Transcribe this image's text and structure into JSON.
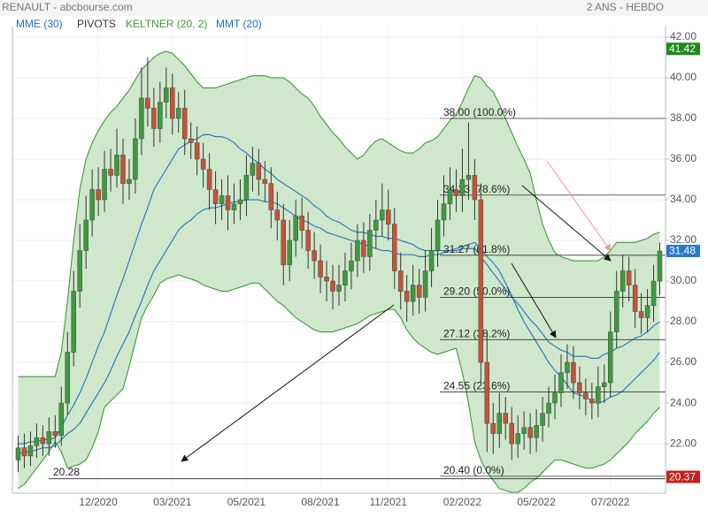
{
  "chart_data": {
    "type": "candlestick",
    "title": "RENAULT - abcbourse.com",
    "period": "2 ANS - HEBDO",
    "categories": [
      null,
      null,
      null,
      null,
      null,
      null,
      null,
      null,
      null,
      null,
      null,
      null,
      null,
      "12/2020",
      null,
      null,
      null,
      null,
      null,
      null,
      null,
      null,
      null,
      null,
      null,
      "03/2021",
      null,
      null,
      null,
      null,
      null,
      null,
      null,
      null,
      null,
      null,
      null,
      "05/2021",
      null,
      null,
      null,
      null,
      null,
      null,
      null,
      null,
      null,
      null,
      null,
      "08/2021",
      null,
      null,
      null,
      null,
      null,
      null,
      null,
      null,
      null,
      null,
      "11/2021",
      null,
      null,
      null,
      null,
      null,
      null,
      null,
      null,
      null,
      null,
      null,
      "02/2022",
      null,
      null,
      null,
      null,
      null,
      null,
      null,
      null,
      null,
      null,
      null,
      "05/2022",
      null,
      null,
      null,
      null,
      null,
      null,
      null,
      null,
      null,
      null,
      null,
      "07/2022",
      null,
      null,
      null,
      null,
      null,
      null,
      null,
      null
    ],
    "open": [
      21.2,
      21.8,
      21.4,
      21.9,
      22.3,
      22.0,
      22.6,
      22.4,
      24.0,
      26.5,
      29.5,
      31.5,
      33.0,
      34.5,
      34.0,
      35.5,
      35.2,
      36.2,
      34.8,
      35.0,
      37.0,
      39.0,
      38.5,
      37.5,
      38.8,
      39.5,
      38.0,
      38.5,
      37.0,
      36.8,
      36.0,
      35.5,
      34.5,
      33.8,
      34.2,
      33.5,
      33.8,
      34.0,
      35.2,
      35.8,
      35.0,
      34.8,
      33.5,
      33.0,
      30.8,
      32.0,
      33.2,
      32.5,
      31.5,
      31.0,
      30.2,
      30.0,
      29.5,
      29.8,
      30.5,
      31.0,
      32.0,
      31.2,
      32.5,
      33.0,
      33.5,
      32.8,
      30.5,
      29.5,
      29.0,
      29.8,
      29.2,
      30.5,
      31.5,
      33.0,
      33.8,
      34.5,
      34.2,
      35.0,
      35.2,
      34.0,
      26.0,
      23.0,
      22.5,
      23.5,
      23.0,
      22.0,
      22.5,
      22.8,
      22.3,
      22.9,
      23.5,
      24.0,
      24.5,
      25.5,
      26.0,
      25.0,
      24.5,
      24.2,
      24.0,
      24.8,
      25.0,
      27.5,
      29.5,
      30.5,
      29.8,
      28.5,
      28.2,
      28.8,
      30.0
    ],
    "high": [
      22.4,
      22.5,
      22.6,
      23.0,
      22.9,
      23.3,
      23.4,
      24.8,
      27.5,
      30.5,
      32.8,
      34.2,
      35.5,
      35.6,
      36.4,
      36.5,
      37.5,
      37.0,
      36.0,
      38.0,
      40.5,
      41.0,
      39.5,
      39.8,
      40.5,
      40.2,
      39.3,
      39.4,
      37.8,
      37.6,
      36.8,
      36.3,
      35.4,
      35.0,
      35.2,
      34.8,
      35.0,
      36.2,
      36.6,
      36.5,
      35.9,
      35.6,
      34.4,
      33.8,
      33.0,
      34.0,
      34.1,
      33.4,
      32.4,
      31.8,
      31.0,
      30.8,
      30.8,
      31.4,
      31.9,
      32.8,
      32.9,
      33.3,
      34.0,
      34.8,
      34.5,
      33.6,
      31.4,
      30.3,
      30.8,
      30.6,
      31.5,
      32.6,
      34.0,
      35.2,
      35.6,
      35.5,
      36.5,
      37.8,
      36.0,
      34.8,
      27.5,
      24.0,
      24.5,
      24.3,
      23.8,
      23.4,
      23.6,
      23.5,
      23.7,
      24.3,
      24.8,
      25.4,
      26.4,
      26.9,
      26.8,
      25.8,
      25.2,
      25.0,
      25.8,
      25.9,
      28.5,
      30.5,
      31.3,
      31.2,
      30.6,
      29.4,
      29.6,
      30.8,
      31.9
    ],
    "low": [
      20.6,
      20.8,
      20.9,
      21.3,
      21.4,
      21.4,
      21.8,
      21.9,
      23.4,
      25.8,
      28.7,
      30.6,
      32.2,
      33.2,
      33.4,
      34.4,
      34.6,
      33.8,
      34.0,
      34.3,
      36.2,
      37.6,
      36.6,
      36.8,
      38.0,
      37.2,
      37.3,
      36.2,
      36.0,
      35.2,
      34.6,
      33.5,
      32.8,
      33.0,
      32.5,
      32.8,
      33.0,
      33.2,
      34.4,
      34.2,
      33.9,
      32.6,
      32.0,
      29.8,
      30.0,
      31.2,
      31.6,
      30.6,
      30.1,
      29.4,
      29.0,
      28.6,
      28.8,
      29.0,
      29.6,
      30.2,
      30.4,
      30.5,
      31.6,
      32.2,
      32.0,
      29.6,
      28.6,
      28.0,
      28.3,
      28.4,
      28.5,
      29.7,
      30.7,
      32.2,
      33.0,
      33.4,
      33.4,
      34.0,
      33.0,
      25.0,
      21.6,
      21.5,
      21.8,
      22.2,
      21.2,
      21.3,
      21.7,
      21.5,
      21.6,
      22.1,
      22.8,
      23.2,
      23.8,
      24.7,
      24.2,
      23.7,
      23.4,
      23.2,
      23.3,
      24.0,
      24.3,
      26.7,
      28.7,
      29.0,
      27.7,
      27.4,
      27.5,
      28.0,
      29.3
    ],
    "close": [
      21.8,
      21.4,
      21.9,
      22.3,
      22.0,
      22.6,
      22.4,
      24.0,
      26.5,
      29.5,
      31.5,
      33.0,
      34.5,
      34.0,
      35.5,
      35.2,
      36.2,
      34.8,
      35.0,
      37.0,
      39.0,
      38.5,
      37.5,
      38.8,
      39.5,
      38.0,
      38.5,
      37.0,
      36.8,
      36.0,
      35.5,
      34.5,
      33.8,
      34.2,
      33.5,
      33.8,
      34.0,
      35.2,
      35.8,
      35.0,
      34.8,
      33.5,
      33.0,
      30.8,
      32.0,
      33.2,
      32.5,
      31.5,
      31.0,
      30.2,
      30.0,
      29.5,
      29.8,
      30.5,
      31.0,
      32.0,
      31.2,
      32.5,
      33.0,
      33.5,
      32.8,
      30.5,
      29.5,
      29.0,
      29.8,
      29.2,
      30.5,
      31.5,
      33.0,
      33.8,
      34.5,
      34.2,
      35.0,
      35.2,
      34.0,
      26.0,
      23.0,
      22.5,
      23.5,
      23.0,
      22.0,
      22.5,
      22.8,
      22.3,
      22.9,
      23.5,
      24.0,
      24.5,
      25.5,
      26.0,
      25.0,
      24.5,
      24.2,
      24.0,
      24.8,
      25.0,
      27.5,
      29.5,
      30.5,
      29.8,
      28.5,
      28.2,
      28.8,
      30.0,
      31.48
    ],
    "up_color": "#3f9a3f",
    "down_color": "#c4533a",
    "series": [
      {
        "name": "MME (30)",
        "color": "#1f6fc5",
        "values": [
          21.5,
          21.6,
          21.6,
          21.7,
          21.8,
          21.8,
          21.9,
          22.2,
          22.5,
          22.7,
          23.0,
          23.5,
          24.0,
          24.5,
          25.0,
          25.6,
          26.3,
          26.9,
          27.5,
          28.3,
          29.0,
          29.8,
          30.5,
          31.0,
          31.5,
          32.0,
          32.5,
          32.8,
          33.0,
          33.3,
          33.5,
          33.6,
          33.6,
          33.7,
          33.8,
          33.9,
          33.9,
          34.0,
          34.0,
          34.0,
          33.9,
          33.9,
          33.8,
          33.6,
          33.4,
          33.2,
          33.0,
          32.9,
          32.7,
          32.6,
          32.4,
          32.3,
          32.2,
          32.1,
          32.0,
          31.9,
          31.8,
          31.7,
          31.6,
          31.5,
          31.5,
          31.4,
          31.3,
          31.3,
          31.3,
          31.2,
          31.2,
          31.3,
          31.3,
          31.4,
          31.5,
          31.6,
          31.7,
          31.8,
          31.9,
          31.6,
          31.2,
          30.9,
          30.5,
          29.9,
          29.3,
          28.6,
          28.0,
          27.5,
          27.0,
          26.5,
          26.0,
          25.6,
          25.3,
          24.9,
          24.5,
          24.4,
          24.3,
          24.1,
          24.0,
          24.1,
          24.3,
          24.4,
          24.6,
          24.9,
          25.2,
          25.5,
          25.8,
          26.1,
          26.5
        ]
      },
      {
        "name": "KELTNER (20, 2)",
        "color": "#3a9a3a",
        "fill": "#cfe8cb",
        "upper": [
          25.3,
          25.3,
          25.3,
          25.3,
          25.3,
          25.3,
          25.3,
          26.5,
          29.0,
          32.0,
          34.5,
          36.0,
          36.8,
          37.4,
          37.9,
          38.3,
          38.6,
          39.0,
          39.4,
          39.9,
          40.4,
          40.7,
          41.0,
          41.2,
          41.3,
          41.2,
          40.9,
          40.6,
          40.2,
          39.8,
          39.5,
          39.5,
          39.5,
          39.6,
          39.7,
          39.8,
          39.9,
          40.0,
          40.1,
          40.1,
          40.1,
          40.0,
          40.0,
          40.0,
          39.8,
          39.5,
          39.2,
          39.0,
          38.6,
          38.1,
          37.7,
          37.3,
          37.0,
          36.6,
          36.3,
          36.0,
          36.2,
          36.6,
          36.9,
          37.0,
          36.8,
          36.6,
          36.4,
          36.3,
          36.3,
          36.5,
          36.8,
          36.9,
          37.1,
          37.5,
          37.9,
          38.2,
          38.8,
          39.5,
          40.1,
          40.0,
          39.6,
          39.3,
          38.7,
          38.0,
          37.3,
          36.6,
          36.0,
          35.3,
          34.0,
          32.8,
          32.0,
          31.4,
          31.2,
          31.1,
          31.0,
          31.0,
          31.0,
          31.0,
          31.0,
          31.2,
          31.5,
          31.9,
          31.9,
          31.9,
          31.9,
          32.0,
          32.1,
          32.3,
          32.4
        ],
        "lower": [
          19.8,
          20.0,
          20.4,
          20.8,
          21.2,
          21.6,
          22.1,
          21.6,
          20.8,
          20.9,
          21.0,
          21.2,
          21.8,
          22.6,
          23.8,
          24.1,
          24.4,
          24.7,
          25.8,
          27.0,
          28.2,
          28.8,
          29.3,
          29.9,
          30.1,
          30.2,
          30.3,
          30.2,
          30.1,
          30.0,
          29.8,
          29.7,
          29.6,
          29.5,
          29.5,
          29.6,
          29.7,
          29.8,
          29.9,
          29.9,
          29.6,
          29.3,
          29.0,
          28.8,
          28.5,
          28.2,
          28.0,
          27.8,
          27.6,
          27.5,
          27.5,
          27.5,
          27.6,
          27.7,
          27.8,
          27.9,
          28.1,
          28.3,
          28.4,
          28.5,
          28.6,
          28.6,
          28.2,
          27.6,
          27.2,
          26.9,
          26.7,
          26.5,
          26.4,
          26.5,
          26.6,
          26.7,
          25.5,
          24.0,
          22.1,
          21.2,
          20.6,
          20.2,
          19.8,
          19.7,
          19.6,
          19.6,
          19.8,
          20.1,
          20.3,
          20.6,
          20.9,
          21.2,
          21.2,
          21.1,
          21.0,
          20.9,
          20.8,
          20.8,
          20.9,
          21.0,
          21.2,
          21.5,
          21.8,
          22.1,
          22.5,
          22.8,
          23.1,
          23.5,
          23.8
        ]
      },
      {
        "name": "MMT (20)",
        "color": "#1f6fc5",
        "values": [
          22.0,
          22.0,
          22.1,
          22.1,
          22.2,
          22.2,
          22.3,
          22.8,
          23.4,
          23.9,
          24.5,
          25.2,
          26.0,
          26.8,
          27.5,
          28.4,
          29.3,
          30.1,
          31.0,
          31.9,
          32.8,
          33.6,
          34.5,
          35.0,
          35.5,
          36.0,
          36.5,
          36.7,
          36.9,
          37.0,
          37.2,
          37.2,
          37.1,
          37.1,
          37.0,
          36.8,
          36.5,
          36.3,
          36.0,
          35.8,
          35.5,
          35.3,
          35.0,
          34.8,
          34.6,
          34.4,
          34.2,
          34.0,
          33.7,
          33.5,
          33.2,
          33.0,
          32.9,
          32.7,
          32.5,
          32.4,
          32.4,
          32.3,
          32.2,
          32.2,
          32.1,
          32.1,
          32.0,
          31.9,
          31.8,
          31.6,
          31.5,
          31.5,
          31.5,
          31.5,
          31.5,
          31.5,
          31.6,
          31.6,
          31.6,
          31.2,
          30.8,
          30.4,
          30.0,
          29.6,
          29.2,
          28.9,
          28.5,
          28.1,
          27.8,
          27.4,
          27.0,
          26.8,
          26.6,
          26.5,
          26.3,
          26.3,
          26.3,
          26.2,
          26.2,
          26.4,
          26.5,
          26.7,
          26.8,
          27.0,
          27.2,
          27.3,
          27.5,
          27.8,
          28.0
        ]
      }
    ],
    "pivots": {
      "name": "PIVOTS",
      "color": "#333333",
      "levels": [
        {
          "value": 38,
          "label": "38.00 (100.0%)"
        },
        {
          "value": 34.23,
          "label": "34.23 (78.6%)"
        },
        {
          "value": 31.27,
          "label": "31.27 (61.8%)"
        },
        {
          "value": 29.2,
          "label": "29.20 (50.0%)"
        },
        {
          "value": 27.12,
          "label": "27.12 (38.2%)"
        },
        {
          "value": 24.55,
          "label": "24.55 (23.6%)"
        },
        {
          "value": 20.4,
          "label": "20.40 (0.0%)"
        }
      ]
    },
    "support": 20.28,
    "price_tags": [
      {
        "value": 41.42,
        "color": "#1e8a1e"
      },
      {
        "value": 31.48,
        "color": "#2a78d0"
      },
      {
        "value": 20.37,
        "color": "#c8201e"
      }
    ],
    "ylim": [
      19.57,
      42.52
    ],
    "yticks": [
      {
        "value": 22,
        "label": "22.00"
      },
      {
        "value": 24,
        "label": "24.00"
      },
      {
        "value": 26,
        "label": "26.00"
      },
      {
        "value": 28,
        "label": "28.00"
      },
      {
        "value": 30,
        "label": "30.00"
      },
      {
        "value": 32,
        "label": "32.00"
      },
      {
        "value": 34,
        "label": "34.00"
      },
      {
        "value": 36,
        "label": "36.00"
      },
      {
        "value": 38,
        "label": "38.00"
      },
      {
        "value": 40,
        "label": "40.00"
      },
      {
        "value": 42,
        "label": "42.00"
      }
    ],
    "grid": true
  }
}
